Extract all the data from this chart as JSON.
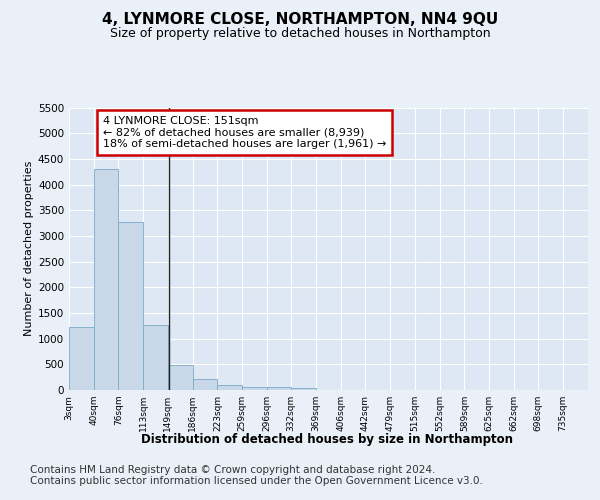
{
  "title": "4, LYNMORE CLOSE, NORTHAMPTON, NN4 9QU",
  "subtitle": "Size of property relative to detached houses in Northampton",
  "xlabel": "Distribution of detached houses by size in Northampton",
  "ylabel": "Number of detached properties",
  "bin_labels": [
    "3sqm",
    "40sqm",
    "76sqm",
    "113sqm",
    "149sqm",
    "186sqm",
    "223sqm",
    "259sqm",
    "296sqm",
    "332sqm",
    "369sqm",
    "406sqm",
    "442sqm",
    "479sqm",
    "515sqm",
    "552sqm",
    "589sqm",
    "625sqm",
    "662sqm",
    "698sqm",
    "735sqm"
  ],
  "bin_edges": [
    3,
    40,
    76,
    113,
    149,
    186,
    223,
    259,
    296,
    332,
    369,
    406,
    442,
    479,
    515,
    552,
    589,
    625,
    662,
    698,
    735,
    772
  ],
  "bar_heights": [
    1230,
    4300,
    3280,
    1270,
    480,
    210,
    100,
    60,
    50,
    40,
    0,
    0,
    0,
    0,
    0,
    0,
    0,
    0,
    0,
    0,
    0
  ],
  "bar_color": "#c8d8e8",
  "bar_edge_color": "#7aaac8",
  "vline_x": 151,
  "vline_color": "#222222",
  "annotation_text": "4 LYNMORE CLOSE: 151sqm\n← 82% of detached houses are smaller (8,939)\n18% of semi-detached houses are larger (1,961) →",
  "annotation_box_color": "#ffffff",
  "annotation_box_edge_color": "#cc0000",
  "ylim": [
    0,
    5500
  ],
  "yticks": [
    0,
    500,
    1000,
    1500,
    2000,
    2500,
    3000,
    3500,
    4000,
    4500,
    5000,
    5500
  ],
  "bg_color": "#eaf0f8",
  "plot_bg_color": "#dde8f4",
  "footer_line1": "Contains HM Land Registry data © Crown copyright and database right 2024.",
  "footer_line2": "Contains public sector information licensed under the Open Government Licence v3.0.",
  "grid_color": "#ffffff",
  "title_fontsize": 11,
  "subtitle_fontsize": 9,
  "annotation_fontsize": 8,
  "footer_fontsize": 7.5
}
